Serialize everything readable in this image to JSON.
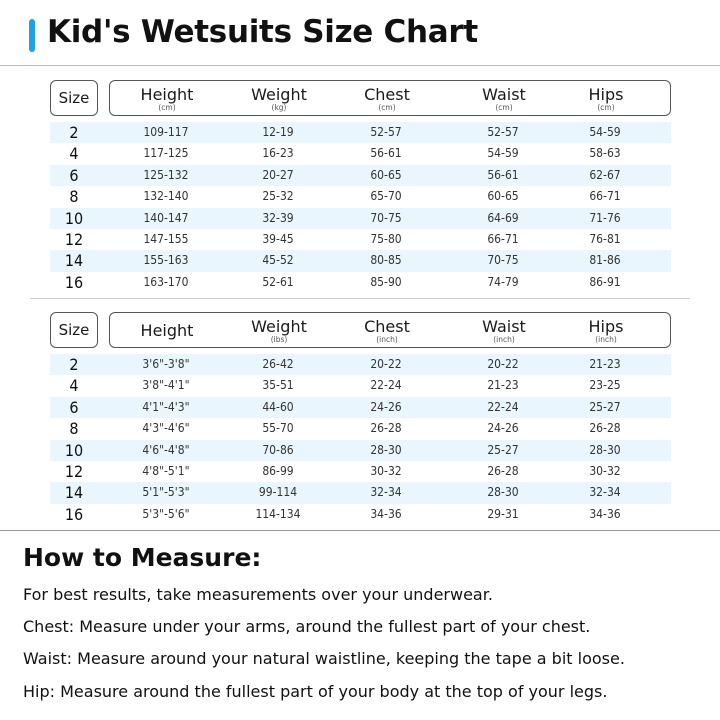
{
  "title": "Kid's Wetsuits Size Chart",
  "accent_color": "#1aa3e8",
  "band_color": "#eaf6fd",
  "metric_table": {
    "size_label": "Size",
    "headers": [
      {
        "name": "Height",
        "unit": "(cm)"
      },
      {
        "name": "Weight",
        "unit": "(kg)"
      },
      {
        "name": "Chest",
        "unit": "(cm)"
      },
      {
        "name": "Waist",
        "unit": "(cm)"
      },
      {
        "name": "Hips",
        "unit": "(cm)"
      }
    ],
    "rows": [
      [
        "2",
        "109-117",
        "12-19",
        "52-57",
        "52-57",
        "54-59"
      ],
      [
        "4",
        "117-125",
        "16-23",
        "56-61",
        "54-59",
        "58-63"
      ],
      [
        "6",
        "125-132",
        "20-27",
        "60-65",
        "56-61",
        "62-67"
      ],
      [
        "8",
        "132-140",
        "25-32",
        "65-70",
        "60-65",
        "66-71"
      ],
      [
        "10",
        "140-147",
        "32-39",
        "70-75",
        "64-69",
        "71-76"
      ],
      [
        "12",
        "147-155",
        "39-45",
        "75-80",
        "66-71",
        "76-81"
      ],
      [
        "14",
        "155-163",
        "45-52",
        "80-85",
        "70-75",
        "81-86"
      ],
      [
        "16",
        "163-170",
        "52-61",
        "85-90",
        "74-79",
        "86-91"
      ]
    ]
  },
  "imperial_table": {
    "size_label": "Size",
    "headers": [
      {
        "name": "Height",
        "unit": ""
      },
      {
        "name": "Weight",
        "unit": "(ibs)"
      },
      {
        "name": "Chest",
        "unit": "(inch)"
      },
      {
        "name": "Waist",
        "unit": "(inch)"
      },
      {
        "name": "Hips",
        "unit": "(inch)"
      }
    ],
    "rows": [
      [
        "2",
        "3'6\"-3'8\"",
        "26-42",
        "20-22",
        "20-22",
        "21-23"
      ],
      [
        "4",
        "3'8\"-4'1\"",
        "35-51",
        "22-24",
        "21-23",
        "23-25"
      ],
      [
        "6",
        "4'1\"-4'3\"",
        "44-60",
        "24-26",
        "22-24",
        "25-27"
      ],
      [
        "8",
        "4'3\"-4'6\"",
        "55-70",
        "26-28",
        "24-26",
        "26-28"
      ],
      [
        "10",
        "4'6\"-4'8\"",
        "70-86",
        "28-30",
        "25-27",
        "28-30"
      ],
      [
        "12",
        "4'8\"-5'1\"",
        "86-99",
        "30-32",
        "26-28",
        "30-32"
      ],
      [
        "14",
        "5'1\"-5'3\"",
        "99-114",
        "32-34",
        "28-30",
        "32-34"
      ],
      [
        "16",
        "5'3\"-5'6\"",
        "114-134",
        "34-36",
        "29-31",
        "34-36"
      ]
    ]
  },
  "how_to": {
    "heading": "How to Measure:",
    "lines": [
      "For best results, take measurements over your underwear.",
      "Chest: Measure under your arms, around the fullest part of your chest.",
      "Waist: Measure around your natural waistline, keeping the tape a bit loose.",
      "Hip: Measure around the fullest part of your body at the top of your legs."
    ]
  }
}
